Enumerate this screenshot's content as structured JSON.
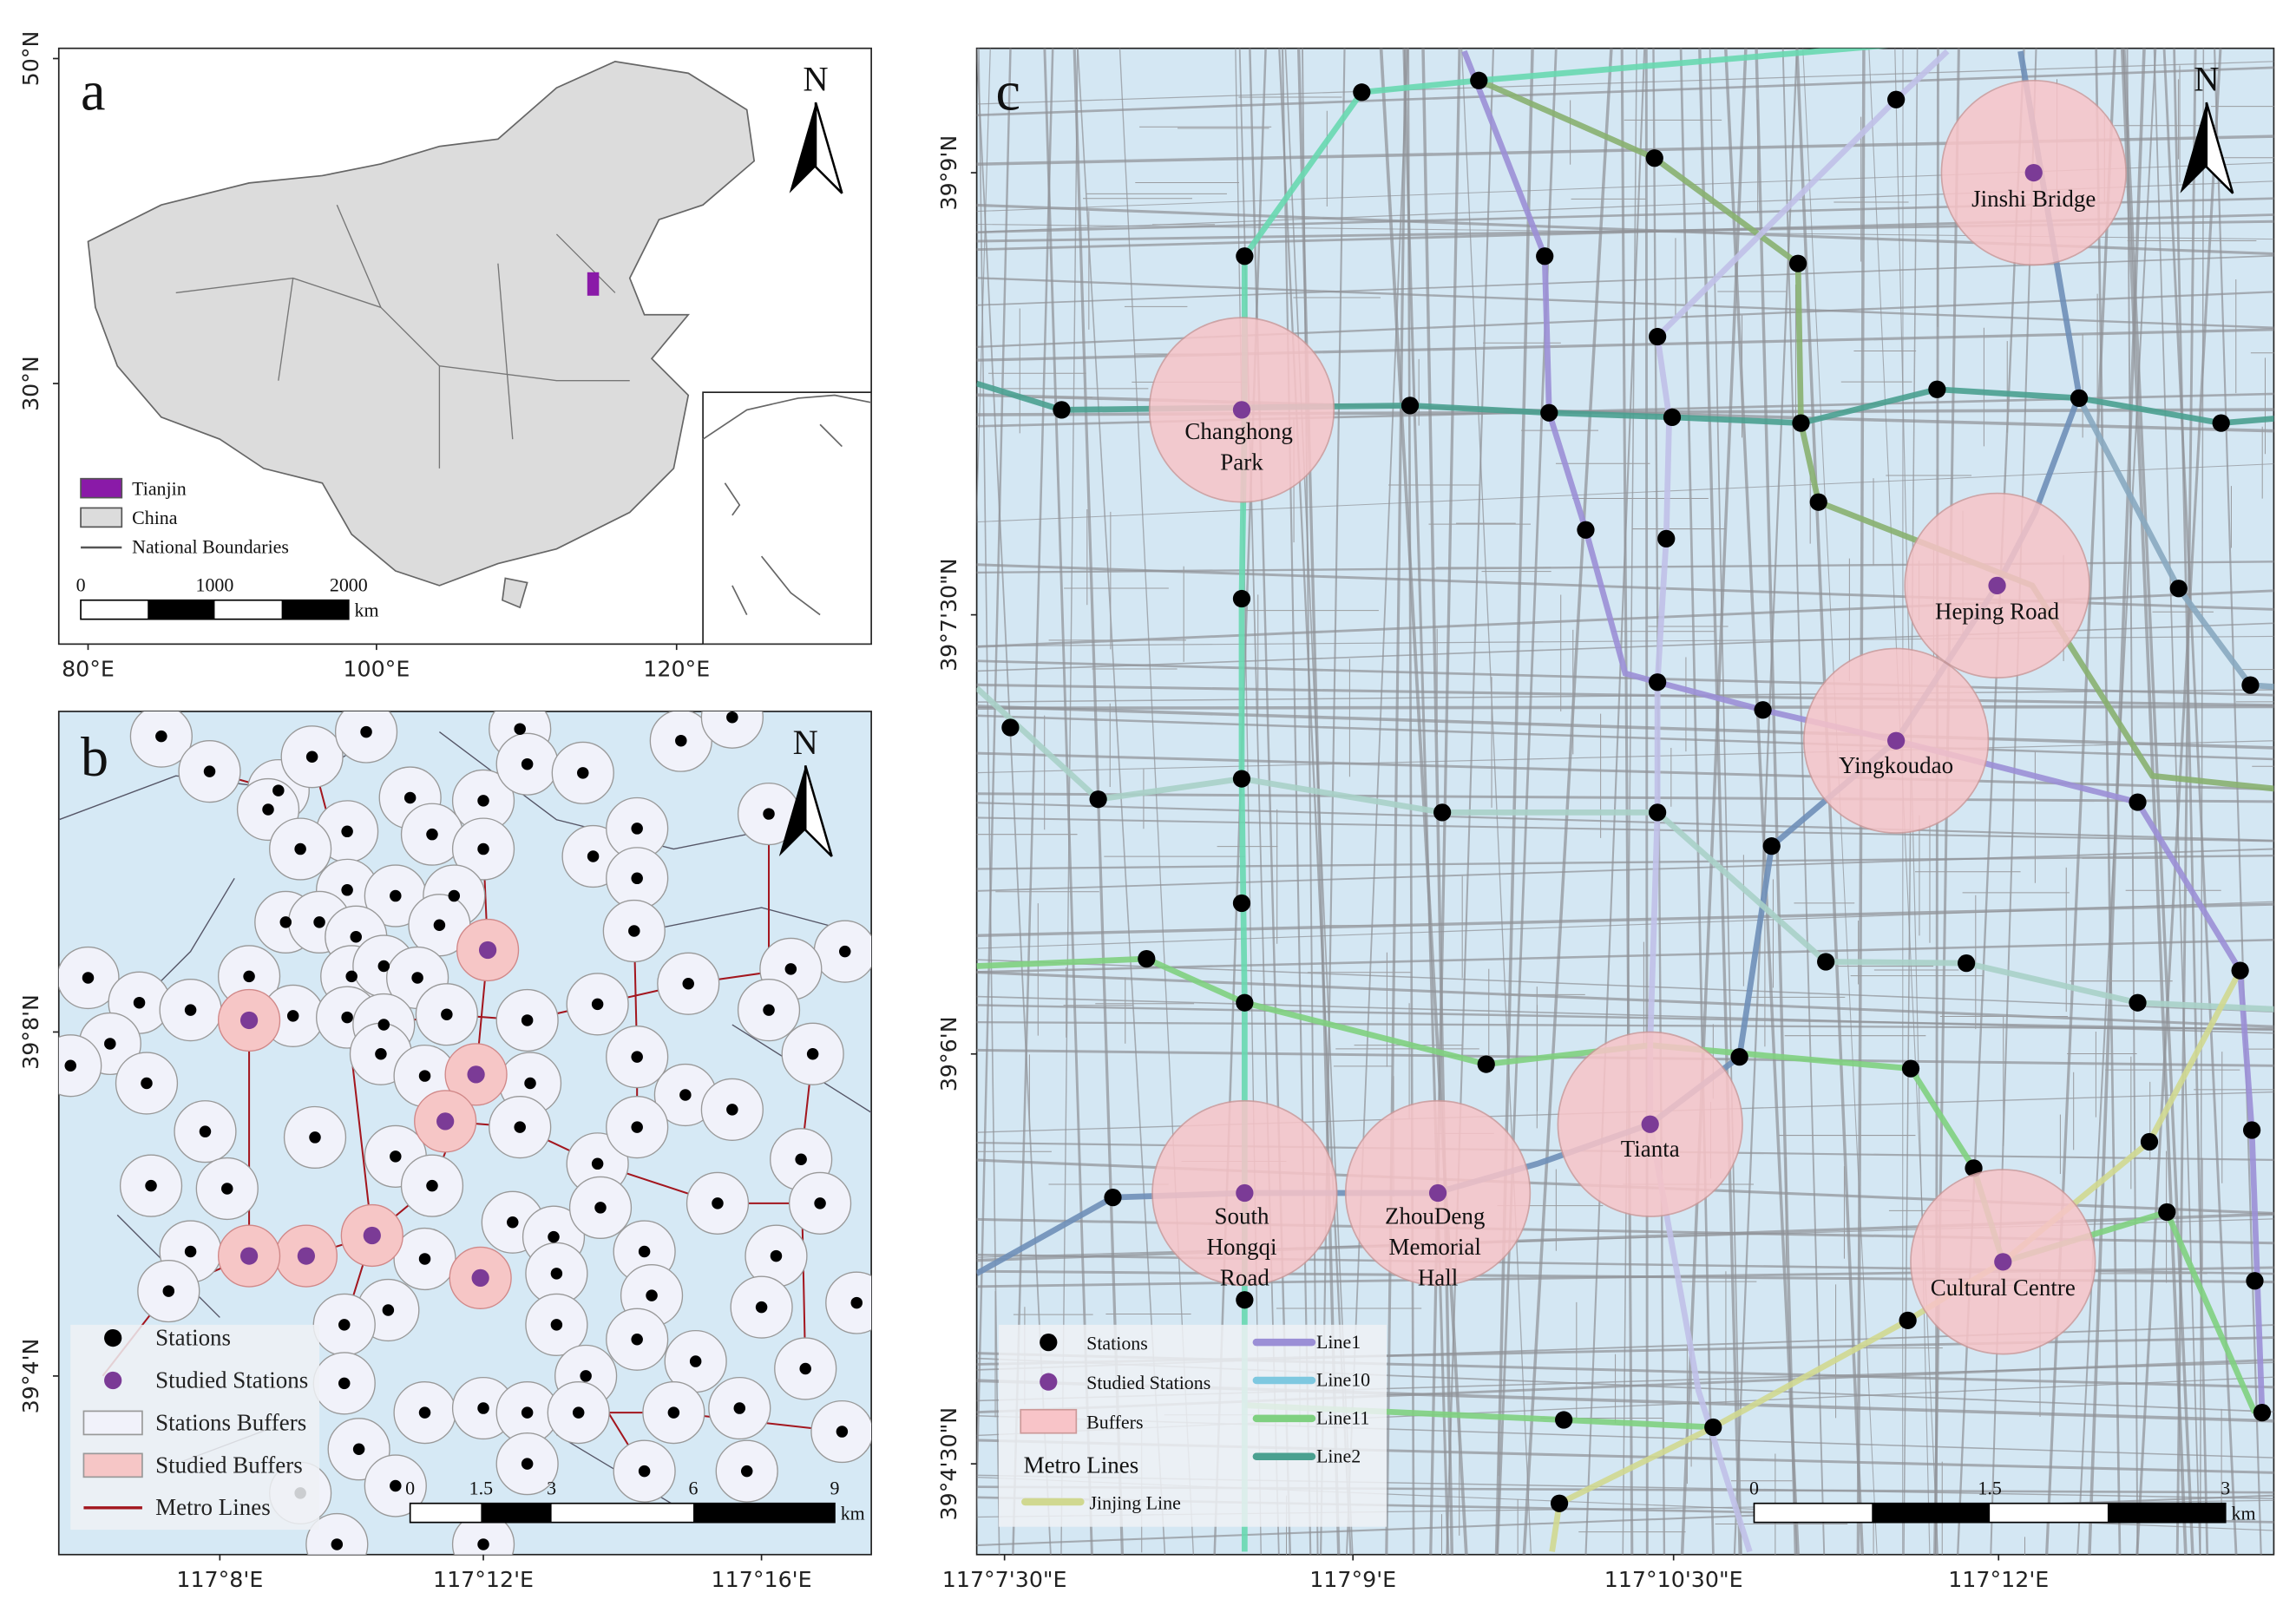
{
  "panels": {
    "a": {
      "label": "a",
      "lat_ticks": [
        "50°N",
        "30°N"
      ],
      "lon_ticks": [
        "80°E",
        "100°E",
        "120°E"
      ],
      "north": "N",
      "legend": [
        "Tianjin",
        "China",
        "National Boundaries"
      ],
      "scale": {
        "ticks": [
          0,
          1000,
          2000
        ],
        "unit": "km"
      }
    },
    "b": {
      "label": "b",
      "lat_ticks": [
        "39°8'N",
        "39°4'N"
      ],
      "lon_ticks": [
        "117°8'E",
        "117°12'E",
        "117°16'E"
      ],
      "north": "N",
      "legend": [
        "Stations",
        "Studied  Stations",
        "Stations Buffers",
        "Studied Buffers",
        "Metro Lines"
      ],
      "scale": {
        "ticks": [
          0,
          1.5,
          3,
          6,
          9
        ],
        "unit": "km"
      }
    },
    "c": {
      "label": "c",
      "lat_ticks": [
        "39°9'N",
        "39°7'30\"N",
        "39°6'N",
        "39°4'30\"N"
      ],
      "lon_ticks": [
        "117°7'30\"E",
        "117°9'E",
        "117°10'30\"E",
        "117°12'E"
      ],
      "north": "N",
      "legend": [
        "Stations",
        "Studied Stations",
        "Buffers"
      ],
      "lines_legend": [
        "Line1",
        "Line10",
        "Line11",
        "Line2"
      ],
      "legend_title": "Metro Lines",
      "legend_extra": "Jinjing Line",
      "scale": {
        "ticks": [
          0,
          1.5,
          3
        ],
        "unit": "km"
      },
      "buffers": [
        "Jinshi Bridge",
        "Changhong Park",
        "Heping Road",
        "Yingkoudao",
        "Tianta",
        "South Hongqi Road",
        "ZhouDeng Memorial Hall",
        "Cultural Centre"
      ]
    }
  }
}
